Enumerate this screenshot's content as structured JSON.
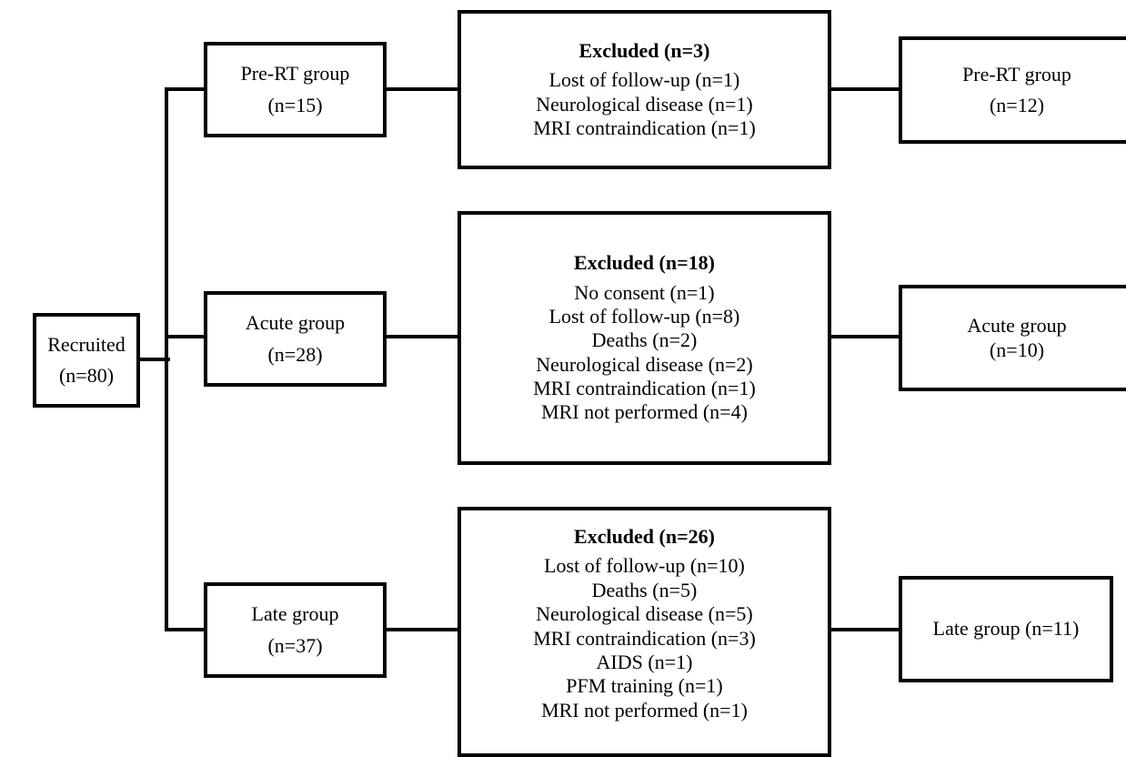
{
  "recruited": {
    "label": "Recruited",
    "count": "(n=80)"
  },
  "groups": [
    {
      "label": "Pre-RT group",
      "count": "(n=15)"
    },
    {
      "label": "Acute group",
      "count": "(n=28)"
    },
    {
      "label": "Late group",
      "count": "(n=37)"
    }
  ],
  "excluded": [
    {
      "title": "Excluded (n=3)",
      "items": [
        "Lost of follow-up (n=1)",
        "Neurological disease (n=1)",
        "MRI contraindication (n=1)"
      ]
    },
    {
      "title": "Excluded (n=18)",
      "items": [
        "No consent (n=1)",
        "Lost of follow-up (n=8)",
        "Deaths (n=2)",
        "Neurological disease (n=2)",
        "MRI contraindication (n=1)",
        "MRI not performed (n=4)"
      ]
    },
    {
      "title": "Excluded (n=26)",
      "items": [
        "Lost of follow-up (n=10)",
        "Deaths (n=5)",
        "Neurological disease (n=5)",
        "MRI contraindication (n=3)",
        "AIDS (n=1)",
        "PFM training (n=1)",
        "MRI not performed (n=1)"
      ]
    }
  ],
  "final": [
    {
      "label": "Pre-RT group",
      "count": "(n=12)"
    },
    {
      "label": "Acute group",
      "count": "(n=10)"
    },
    {
      "label": "Late group (n=11)"
    }
  ]
}
